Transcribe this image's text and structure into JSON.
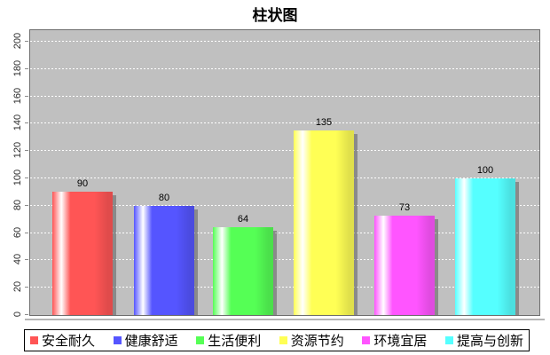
{
  "chart_data": {
    "type": "bar",
    "title": "柱状图",
    "categories": [
      "安全耐久",
      "健康舒适",
      "生活便利",
      "资源节约",
      "环境宜居",
      "提高与创新"
    ],
    "values": [
      90,
      80,
      64,
      135,
      73,
      100
    ],
    "value_labels": [
      "90",
      "80",
      "64",
      "135",
      "73",
      "100"
    ],
    "colors": [
      "#ff5555",
      "#5555ff",
      "#55ff55",
      "#ffff55",
      "#ff55ff",
      "#55ffff"
    ],
    "ylim": [
      0,
      200
    ],
    "yticks": [
      0,
      20,
      40,
      60,
      80,
      100,
      120,
      140,
      160,
      180,
      200
    ],
    "xlabel": "",
    "ylabel": "",
    "grid": "dashed-white-horizontal",
    "plot_background": "#c0c0c0",
    "shadow_color": "#8f8f8f",
    "legend_position": "bottom"
  }
}
